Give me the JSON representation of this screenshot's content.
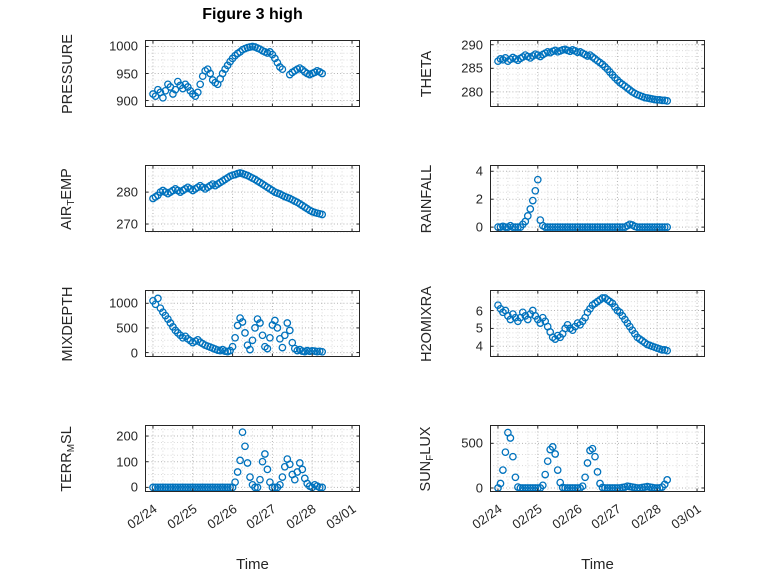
{
  "chart_data": {
    "type": "scatter",
    "title": "Figure 3 high",
    "xlabel": "Time",
    "marker_color": "#0072BD",
    "grid": "dotted-major-and-minor",
    "x_tick_labels": [
      "02/24",
      "02/25",
      "02/26",
      "02/27",
      "02/28",
      "03/01"
    ],
    "x_tick_values": [
      0,
      1,
      2,
      3,
      4,
      5
    ],
    "xlim": [
      -0.2,
      5.2
    ],
    "t0": 0,
    "dt": 0.0625,
    "panels": [
      {
        "name": "PRESSURE",
        "label_parts": [
          [
            "PRESSURE",
            false
          ]
        ],
        "ylim": [
          888,
          1012
        ],
        "yticks": [
          900,
          950,
          1000
        ],
        "values": [
          912,
          908,
          920,
          915,
          905,
          918,
          930,
          925,
          912,
          920,
          935,
          928,
          922,
          930,
          925,
          918,
          912,
          908,
          915,
          930,
          945,
          955,
          958,
          950,
          938,
          933,
          930,
          940,
          950,
          958,
          965,
          972,
          978,
          983,
          987,
          990,
          994,
          996,
          998,
          999,
          1000,
          999,
          997,
          995,
          992,
          990,
          988,
          990,
          985,
          978,
          970,
          962,
          958,
          null,
          null,
          948,
          952,
          955,
          958,
          960,
          957,
          953,
          950,
          948,
          950,
          952,
          955,
          953,
          950,
          null,
          null,
          null,
          null
        ]
      },
      {
        "name": "THETA",
        "label_parts": [
          [
            "THETA",
            false
          ]
        ],
        "ylim": [
          276.8,
          291
        ],
        "yticks": [
          280,
          285,
          290
        ],
        "values": [
          286.5,
          287.0,
          286.8,
          287.2,
          286.5,
          286.9,
          287.3,
          287.0,
          286.7,
          287.1,
          287.4,
          287.8,
          287.5,
          287.2,
          287.6,
          288.0,
          287.8,
          287.5,
          287.9,
          288.2,
          288.5,
          288.3,
          288.6,
          288.8,
          288.5,
          288.7,
          288.9,
          289.0,
          288.8,
          288.6,
          288.9,
          288.7,
          288.4,
          288.5,
          288.2,
          287.9,
          287.6,
          287.8,
          287.4,
          287.0,
          286.6,
          286.2,
          285.8,
          285.3,
          284.8,
          284.2,
          283.6,
          283.0,
          282.5,
          282.0,
          281.6,
          281.2,
          280.8,
          280.4,
          280.0,
          279.7,
          279.4,
          279.2,
          279.0,
          278.8,
          278.7,
          278.6,
          278.5,
          278.4,
          278.3,
          278.3,
          278.2,
          278.2,
          278.1,
          null,
          null,
          null,
          null
        ]
      },
      {
        "name": "AIR_TEMP",
        "label_parts": [
          [
            "AIR",
            false
          ],
          [
            "T",
            true
          ],
          [
            "EMP",
            false
          ]
        ],
        "ylim": [
          267.5,
          288.5
        ],
        "yticks": [
          270,
          280
        ],
        "values": [
          278.0,
          278.5,
          279.0,
          280.0,
          280.5,
          280.0,
          279.5,
          280.0,
          280.5,
          281.0,
          280.5,
          280.0,
          280.5,
          281.0,
          281.5,
          281.0,
          280.5,
          281.0,
          281.5,
          282.0,
          281.5,
          281.0,
          281.5,
          282.0,
          282.5,
          282.0,
          282.5,
          283.0,
          283.5,
          284.0,
          284.5,
          285.0,
          285.3,
          285.5,
          285.8,
          286.0,
          285.8,
          285.5,
          285.2,
          284.8,
          284.4,
          284.0,
          283.5,
          283.0,
          282.5,
          282.0,
          281.5,
          281.0,
          280.5,
          280.0,
          279.7,
          279.4,
          279.0,
          278.6,
          278.3,
          278.0,
          277.6,
          277.2,
          276.8,
          276.3,
          275.8,
          275.3,
          274.8,
          274.3,
          273.9,
          273.6,
          273.4,
          273.2,
          273.0,
          null,
          null,
          null,
          null
        ]
      },
      {
        "name": "RAINFALL",
        "label_parts": [
          [
            "RAINFALL",
            false
          ]
        ],
        "ylim": [
          -0.35,
          4.45
        ],
        "yticks": [
          0,
          2,
          4
        ],
        "values": [
          0,
          0,
          0.05,
          0,
          0,
          0.1,
          0,
          0,
          0,
          0,
          0.2,
          0.4,
          0.8,
          1.3,
          1.9,
          2.6,
          3.4,
          0.5,
          0.1,
          0,
          0,
          0,
          0,
          0,
          0,
          0,
          0,
          0,
          0,
          0,
          0,
          0,
          0,
          0,
          0,
          0,
          0,
          0,
          0,
          0,
          0,
          0,
          0,
          0,
          0,
          0,
          0,
          0,
          0,
          0,
          0,
          0,
          0.1,
          0.2,
          0.15,
          0.05,
          0,
          0,
          0,
          0,
          0,
          0,
          0,
          0,
          0,
          0,
          0,
          0,
          0,
          null,
          null,
          null,
          null
        ]
      },
      {
        "name": "MIXDEPTH",
        "label_parts": [
          [
            "MIXDEPTH",
            false
          ]
        ],
        "ylim": [
          -90,
          1270
        ],
        "yticks": [
          0,
          500,
          1000
        ],
        "values": [
          1050,
          980,
          1100,
          900,
          820,
          750,
          680,
          600,
          520,
          450,
          400,
          350,
          300,
          330,
          280,
          240,
          200,
          230,
          260,
          210,
          180,
          150,
          130,
          110,
          90,
          70,
          50,
          40,
          60,
          30,
          20,
          40,
          120,
          300,
          550,
          700,
          620,
          400,
          150,
          60,
          250,
          500,
          680,
          600,
          350,
          120,
          80,
          300,
          560,
          650,
          500,
          280,
          100,
          350,
          600,
          450,
          200,
          80,
          40,
          60,
          30,
          20,
          40,
          25,
          35,
          30,
          20,
          25,
          15,
          null,
          null,
          null,
          null
        ]
      },
      {
        "name": "H2OMIXRA",
        "label_parts": [
          [
            "H2OMIXRA",
            false
          ]
        ],
        "ylim": [
          3.4,
          7.15
        ],
        "yticks": [
          4,
          5,
          6
        ],
        "values": [
          6.3,
          6.1,
          5.9,
          6.0,
          5.7,
          5.5,
          5.8,
          5.6,
          5.4,
          5.6,
          5.9,
          5.7,
          5.5,
          5.8,
          6.0,
          5.7,
          5.5,
          5.3,
          5.6,
          5.4,
          5.1,
          4.8,
          4.5,
          4.4,
          4.6,
          4.5,
          4.7,
          5.0,
          5.2,
          5.0,
          4.9,
          5.1,
          5.3,
          5.2,
          5.4,
          5.6,
          5.9,
          6.1,
          6.3,
          6.4,
          6.5,
          6.6,
          6.7,
          6.7,
          6.6,
          6.5,
          6.4,
          6.2,
          6.0,
          5.9,
          5.7,
          5.5,
          5.3,
          5.1,
          4.9,
          4.7,
          4.5,
          4.4,
          4.3,
          4.2,
          4.1,
          4.05,
          4.0,
          3.95,
          3.9,
          3.85,
          3.8,
          3.8,
          3.75,
          null,
          null,
          null,
          null
        ]
      },
      {
        "name": "TERR_MSL",
        "label_parts": [
          [
            "TERR",
            false
          ],
          [
            "M",
            true
          ],
          [
            "SL",
            false
          ]
        ],
        "ylim": [
          -18,
          243
        ],
        "yticks": [
          0,
          100,
          200
        ],
        "values": [
          0,
          0,
          0,
          0,
          0,
          0,
          0,
          0,
          0,
          0,
          0,
          0,
          0,
          0,
          0,
          0,
          0,
          0,
          0,
          0,
          0,
          0,
          0,
          0,
          0,
          0,
          0,
          0,
          0,
          0,
          0,
          0,
          0,
          20,
          60,
          105,
          215,
          160,
          95,
          40,
          10,
          0,
          0,
          30,
          100,
          130,
          70,
          20,
          0,
          0,
          0,
          10,
          40,
          80,
          110,
          90,
          50,
          30,
          60,
          95,
          70,
          35,
          15,
          5,
          0,
          10,
          5,
          0,
          0,
          null,
          null,
          null,
          null
        ]
      },
      {
        "name": "SUN_FLUX",
        "label_parts": [
          [
            "SUN",
            false
          ],
          [
            "F",
            true
          ],
          [
            "LUX",
            false
          ]
        ],
        "ylim": [
          -45,
          705
        ],
        "yticks": [
          0,
          500
        ],
        "values": [
          0,
          50,
          200,
          400,
          620,
          560,
          350,
          120,
          10,
          0,
          0,
          0,
          0,
          0,
          0,
          0,
          0,
          0,
          30,
          150,
          300,
          430,
          460,
          380,
          200,
          60,
          5,
          0,
          0,
          0,
          0,
          0,
          0,
          0,
          20,
          120,
          280,
          420,
          440,
          350,
          180,
          50,
          5,
          0,
          0,
          0,
          0,
          0,
          0,
          0,
          5,
          10,
          20,
          15,
          10,
          5,
          0,
          0,
          5,
          10,
          15,
          10,
          5,
          0,
          0,
          0,
          10,
          40,
          90,
          null,
          null,
          null,
          null
        ]
      }
    ]
  }
}
